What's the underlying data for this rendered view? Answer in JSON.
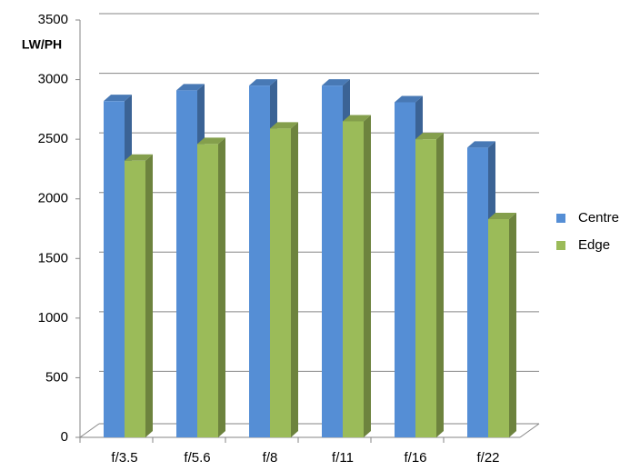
{
  "chart_data": {
    "type": "bar",
    "y_axis_title": "LW/PH",
    "categories": [
      "f/3.5",
      "f/5.6",
      "f/8",
      "f/11",
      "f/16",
      "f/22"
    ],
    "series": [
      {
        "name": "Centre",
        "color": "#558ed5",
        "values": [
          2820,
          2910,
          2950,
          2950,
          2810,
          2430
        ]
      },
      {
        "name": "Edge",
        "color": "#9bbb59",
        "values": [
          2320,
          2460,
          2590,
          2650,
          2500,
          1830
        ]
      }
    ],
    "ylim": [
      0,
      3500
    ],
    "yticks": [
      0,
      500,
      1000,
      1500,
      2000,
      2500,
      3000,
      3500
    ],
    "grid": true,
    "legend": "right"
  }
}
